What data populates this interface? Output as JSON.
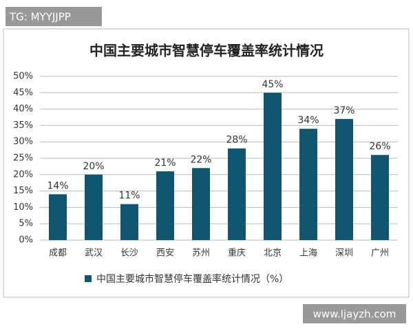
{
  "watermark_top": "TG: MYYJJPP",
  "watermark_bottom": "www.ljayzh.com",
  "chart_data": {
    "type": "bar",
    "title": "中国主要城市智慧停车覆盖率统计情况",
    "categories": [
      "成都",
      "武汉",
      "长沙",
      "西安",
      "苏州",
      "重庆",
      "北京",
      "上海",
      "深圳",
      "广州"
    ],
    "series": [
      {
        "name": "中国主要城市智慧停车覆盖率统计情况（%）",
        "color": "#115670",
        "values": [
          14,
          20,
          11,
          21,
          22,
          28,
          45,
          34,
          37,
          26
        ],
        "value_labels": [
          "14%",
          "20%",
          "11%",
          "21%",
          "22%",
          "28%",
          "45%",
          "34%",
          "37%",
          "26%"
        ]
      }
    ],
    "ylim": [
      0,
      50
    ],
    "yticks": [
      {
        "value": 0,
        "label": "0%"
      },
      {
        "value": 5,
        "label": "5%"
      },
      {
        "value": 10,
        "label": "10%"
      },
      {
        "value": 15,
        "label": "15%"
      },
      {
        "value": 20,
        "label": "20%"
      },
      {
        "value": 25,
        "label": "25%"
      },
      {
        "value": 30,
        "label": "30%"
      },
      {
        "value": 35,
        "label": "35%"
      },
      {
        "value": 40,
        "label": "40%"
      },
      {
        "value": 45,
        "label": "45%"
      },
      {
        "value": 50,
        "label": "50%"
      }
    ],
    "grid": true
  }
}
